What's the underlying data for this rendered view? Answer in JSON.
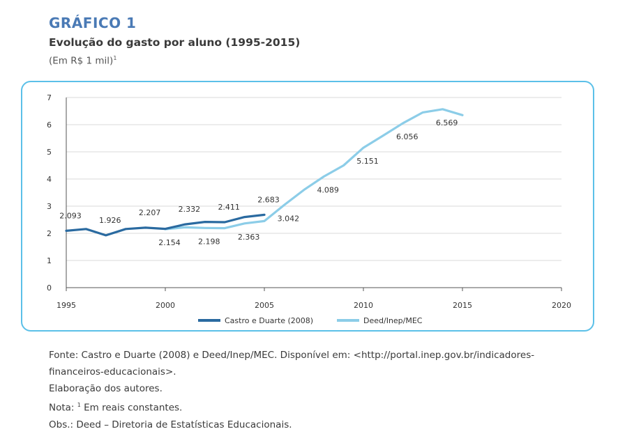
{
  "heading": {
    "label": "GRÁFICO 1",
    "title": "Evolução do gasto por aluno (1995-2015)",
    "subtitle": "(Em R$ 1 mil)",
    "subtitle_note_mark": "1"
  },
  "chart_data": {
    "type": "line",
    "title": "Evolução do gasto por aluno (1995-2015)",
    "xlabel": "",
    "ylabel": "",
    "xlim": [
      1995,
      2020
    ],
    "ylim": [
      0,
      7
    ],
    "x_ticks": [
      "1995",
      "2000",
      "2005",
      "2010",
      "2015",
      "2020"
    ],
    "y_ticks": [
      "0",
      "1",
      "2",
      "3",
      "4",
      "5",
      "6",
      "7"
    ],
    "grid": true,
    "legend_position": "bottom-center",
    "series": [
      {
        "name": "Castro e Duarte (2008)",
        "color": "#2a6aa0",
        "x": [
          1995,
          1996,
          1997,
          1998,
          1999,
          2000,
          2001,
          2002,
          2003,
          2004,
          2005
        ],
        "values": [
          2.093,
          2.16,
          1.926,
          2.16,
          2.207,
          2.165,
          2.332,
          2.42,
          2.411,
          2.6,
          2.683
        ]
      },
      {
        "name": "Deed/Inep/MEC",
        "color": "#8ccde8",
        "x": [
          2000,
          2001,
          2002,
          2003,
          2004,
          2005,
          2006,
          2007,
          2008,
          2009,
          2010,
          2011,
          2012,
          2013,
          2014,
          2015
        ],
        "values": [
          2.154,
          2.22,
          2.198,
          2.19,
          2.363,
          2.45,
          3.042,
          3.6,
          4.089,
          4.5,
          5.151,
          5.6,
          6.056,
          6.45,
          6.569,
          6.35
        ]
      }
    ],
    "annotations": [
      {
        "text": "2.093",
        "x": 1995,
        "y": 2.093,
        "side": "above"
      },
      {
        "text": "1.926",
        "x": 1997,
        "y": 1.926,
        "side": "above"
      },
      {
        "text": "2.207",
        "x": 1999,
        "y": 2.207,
        "side": "above"
      },
      {
        "text": "2.332",
        "x": 2001,
        "y": 2.332,
        "side": "above"
      },
      {
        "text": "2.411",
        "x": 2003,
        "y": 2.411,
        "side": "above"
      },
      {
        "text": "2.683",
        "x": 2005,
        "y": 2.683,
        "side": "above"
      },
      {
        "text": "2.154",
        "x": 2000,
        "y": 2.154,
        "side": "below"
      },
      {
        "text": "2.198",
        "x": 2002,
        "y": 2.198,
        "side": "below"
      },
      {
        "text": "2.363",
        "x": 2004,
        "y": 2.363,
        "side": "below"
      },
      {
        "text": "3.042",
        "x": 2006,
        "y": 3.042,
        "side": "below"
      },
      {
        "text": "4.089",
        "x": 2008,
        "y": 4.089,
        "side": "below"
      },
      {
        "text": "5.151",
        "x": 2010,
        "y": 5.151,
        "side": "below"
      },
      {
        "text": "6.056",
        "x": 2012,
        "y": 6.056,
        "side": "below"
      },
      {
        "text": "6.569",
        "x": 2014,
        "y": 6.569,
        "side": "below"
      }
    ]
  },
  "notes": {
    "source_line1": "Fonte: Castro e Duarte (2008) e Deed/Inep/MEC. Disponível em: <http://portal.inep.gov.br/indicadores-",
    "source_line2": "financeiros-educacionais>.",
    "elaboration": "Elaboração dos autores.",
    "note_prefix": "Nota: ",
    "note_mark": "1",
    "note_text": " Em reais constantes.",
    "obs": "Obs.: Deed – Diretoria de Estatísticas Educacionais."
  }
}
